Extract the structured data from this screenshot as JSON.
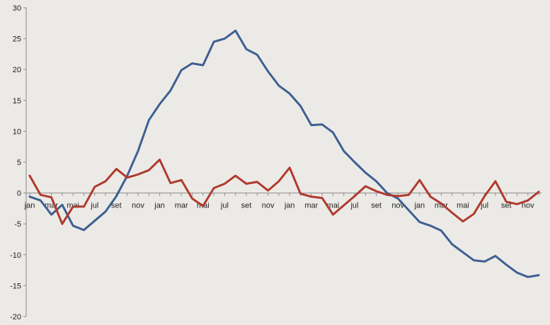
{
  "chart_data": {
    "type": "line",
    "title": "",
    "xlabel": "",
    "ylabel": "",
    "ylim": [
      -20,
      30
    ],
    "yticks": [
      -20,
      -15,
      -10,
      -5,
      0,
      5,
      10,
      15,
      20,
      25,
      30
    ],
    "grid": false,
    "legend": "none",
    "x_tick_labels": [
      "jan",
      "mar",
      "mai",
      "jul",
      "set",
      "nov",
      "jan",
      "mar",
      "mai",
      "jul",
      "set",
      "nov",
      "jan",
      "mar",
      "mai",
      "jul",
      "set",
      "nov",
      "jan",
      "mar",
      "mai",
      "jul",
      "set",
      "nov"
    ],
    "series": [
      {
        "color": "#3d5f93",
        "values": [
          -0.6,
          -1.2,
          -3.5,
          -1.9,
          -5.3,
          -6.0,
          -4.5,
          -3.0,
          -0.5,
          2.8,
          6.8,
          11.8,
          14.4,
          16.6,
          19.9,
          21.0,
          20.7,
          24.5,
          25.0,
          26.3,
          23.3,
          22.4,
          19.7,
          17.4,
          16.1,
          14.1,
          11.0,
          11.1,
          9.8,
          6.8,
          5.0,
          3.3,
          1.9,
          0.0,
          -0.9,
          -2.8,
          -4.7,
          -5.3,
          -6.1,
          -8.3,
          -9.6,
          -10.9,
          -11.1,
          -10.2,
          -11.6,
          -12.9,
          -13.6,
          -13.3
        ]
      },
      {
        "color": "#b03a2e",
        "values": [
          2.8,
          -0.3,
          -0.7,
          -5.0,
          -2.2,
          -2.2,
          1.0,
          1.9,
          3.9,
          2.5,
          3.0,
          3.7,
          5.4,
          1.6,
          2.1,
          -0.9,
          -2.1,
          0.8,
          1.5,
          2.8,
          1.5,
          1.8,
          0.4,
          1.9,
          4.1,
          -0.1,
          -0.6,
          -0.8,
          -3.5,
          -2.0,
          -0.5,
          1.1,
          0.3,
          -0.3,
          -0.5,
          -0.3,
          2.1,
          -0.6,
          -1.7,
          -3.2,
          -4.6,
          -3.4,
          -0.5,
          1.9,
          -1.4,
          -1.8,
          -1.2,
          0.2
        ]
      }
    ]
  }
}
